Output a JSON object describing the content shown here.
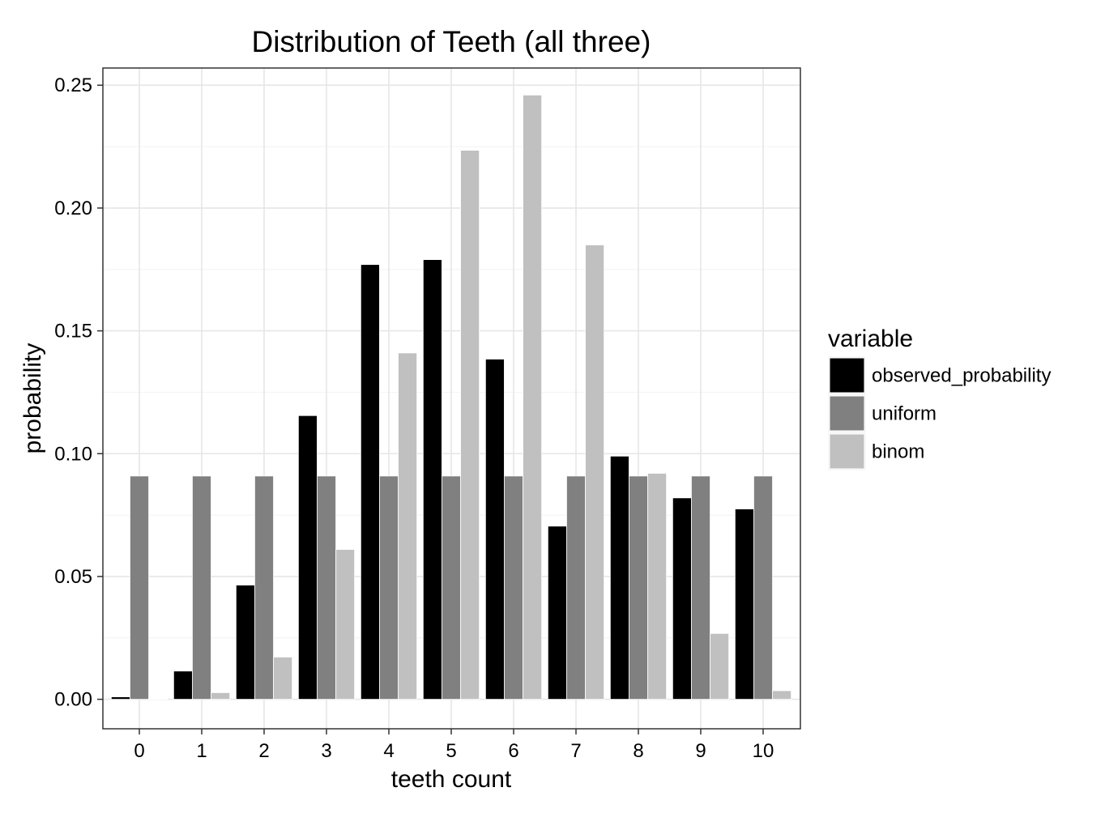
{
  "chart_data": {
    "type": "bar",
    "title": "Distribution of Teeth (all three)",
    "xlabel": "teeth count",
    "ylabel": "probability",
    "categories": [
      "0",
      "1",
      "2",
      "3",
      "4",
      "5",
      "6",
      "7",
      "8",
      "9",
      "10"
    ],
    "ylim": [
      -0.012,
      0.257
    ],
    "yticks": [
      "0.00",
      "0.05",
      "0.10",
      "0.15",
      "0.20",
      "0.25"
    ],
    "ytick_values": [
      0,
      0.05,
      0.1,
      0.15,
      0.2,
      0.25
    ],
    "grid": true,
    "legend": {
      "title": "variable",
      "position": "right"
    },
    "series": [
      {
        "name": "observed_probability",
        "color": "#000000",
        "values": [
          0.001,
          0.0115,
          0.0465,
          0.1155,
          0.177,
          0.179,
          0.1385,
          0.0705,
          0.099,
          0.082,
          0.0775
        ]
      },
      {
        "name": "uniform",
        "color": "#808080",
        "values": [
          0.0909,
          0.0909,
          0.0909,
          0.0909,
          0.0909,
          0.0909,
          0.0909,
          0.0909,
          0.0909,
          0.0909,
          0.0909
        ]
      },
      {
        "name": "binom",
        "color": "#c0c0c0",
        "values": [
          0.0002,
          0.0027,
          0.0172,
          0.061,
          0.141,
          0.2235,
          0.246,
          0.185,
          0.092,
          0.0268,
          0.0035
        ]
      }
    ]
  }
}
